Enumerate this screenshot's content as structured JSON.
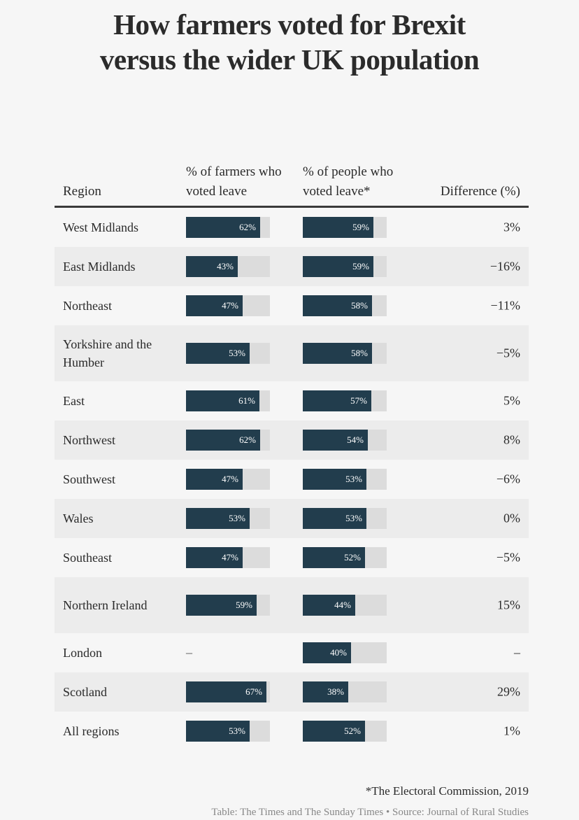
{
  "title_lines": [
    "How farmers voted for Brexit",
    "versus the wider UK population"
  ],
  "columns": {
    "region": "Region",
    "farmers": "% of farmers who voted leave",
    "people": "% of people who voted leave*",
    "difference": "Difference (%)"
  },
  "footnote": "*The Electoral Commission, 2019",
  "source": "Table: The Times and The Sunday Times • Source: Journal of Rural Studies",
  "colors": {
    "bar": "#223d4d",
    "track": "#dcdcdc",
    "row_shade": "#ececec"
  },
  "chart_data": {
    "type": "table",
    "title": "How farmers voted for Brexit versus the wider UK population",
    "scale_max": 70,
    "rows": [
      {
        "region": "West Midlands",
        "farmers": 62,
        "farmers_label": "62%",
        "people": 59,
        "people_label": "59%",
        "difference": "3%"
      },
      {
        "region": "East Midlands",
        "farmers": 43,
        "farmers_label": "43%",
        "people": 59,
        "people_label": "59%",
        "difference": "−16%"
      },
      {
        "region": "Northeast",
        "farmers": 47,
        "farmers_label": "47%",
        "people": 58,
        "people_label": "58%",
        "difference": "−11%"
      },
      {
        "region": "Yorkshire and the Humber",
        "farmers": 53,
        "farmers_label": "53%",
        "people": 58,
        "people_label": "58%",
        "difference": "−5%"
      },
      {
        "region": "East",
        "farmers": 61,
        "farmers_label": "61%",
        "people": 57,
        "people_label": "57%",
        "difference": "5%"
      },
      {
        "region": "Northwest",
        "farmers": 62,
        "farmers_label": "62%",
        "people": 54,
        "people_label": "54%",
        "difference": "8%"
      },
      {
        "region": "Southwest",
        "farmers": 47,
        "farmers_label": "47%",
        "people": 53,
        "people_label": "53%",
        "difference": "−6%"
      },
      {
        "region": "Wales",
        "farmers": 53,
        "farmers_label": "53%",
        "people": 53,
        "people_label": "53%",
        "difference": "0%"
      },
      {
        "region": "Southeast",
        "farmers": 47,
        "farmers_label": "47%",
        "people": 52,
        "people_label": "52%",
        "difference": "−5%"
      },
      {
        "region": "Northern Ireland",
        "farmers": 59,
        "farmers_label": "59%",
        "people": 44,
        "people_label": "44%",
        "difference": "15%"
      },
      {
        "region": "London",
        "farmers": null,
        "farmers_label": "–",
        "people": 40,
        "people_label": "40%",
        "difference": "–"
      },
      {
        "region": "Scotland",
        "farmers": 67,
        "farmers_label": "67%",
        "people": 38,
        "people_label": "38%",
        "difference": "29%"
      },
      {
        "region": "All regions",
        "farmers": 53,
        "farmers_label": "53%",
        "people": 52,
        "people_label": "52%",
        "difference": "1%"
      }
    ]
  }
}
